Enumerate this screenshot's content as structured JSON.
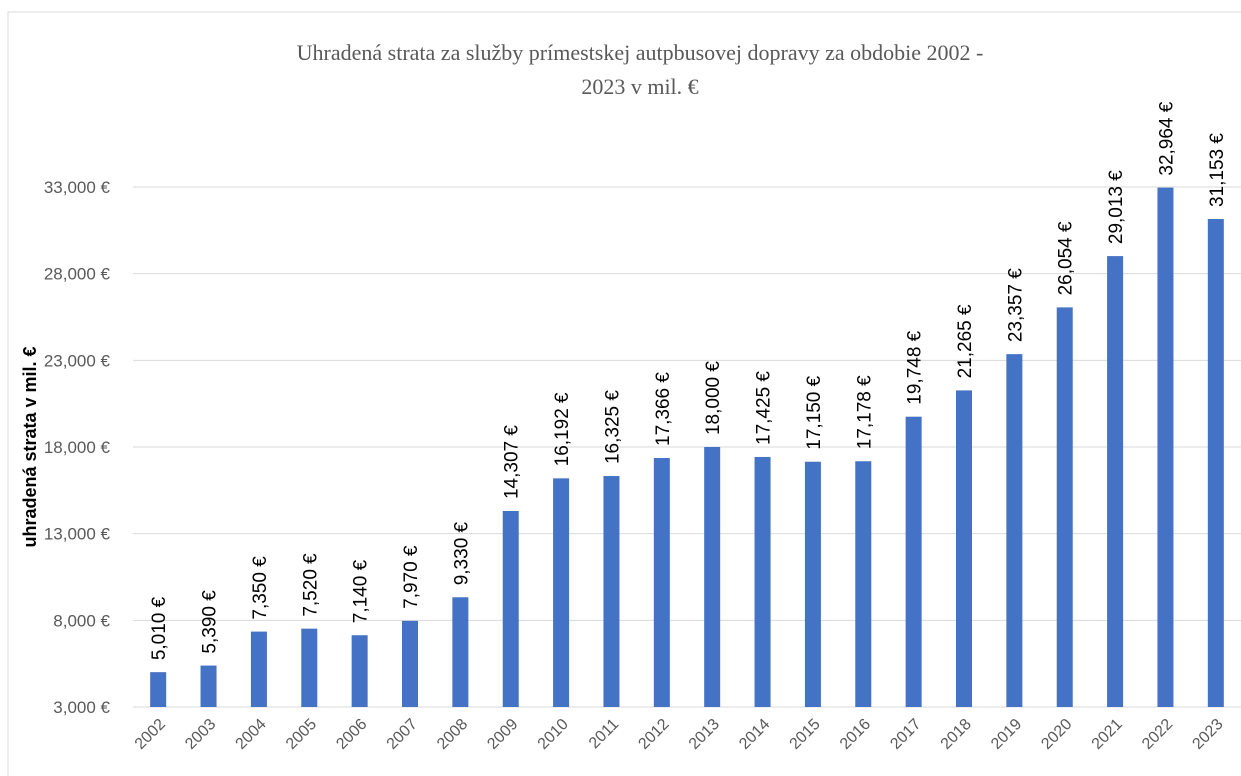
{
  "chart_data": {
    "type": "bar",
    "title": [
      "Uhradená strata za služby prímestskej autpbusovej dopravy za obdobie 2002 -",
      "2023 v mil. €"
    ],
    "y_label": "uhradená strata v mil. €",
    "categories": [
      "2002",
      "2003",
      "2004",
      "2005",
      "2006",
      "2007",
      "2008",
      "2009",
      "2010",
      "2011",
      "2012",
      "2013",
      "2014",
      "2015",
      "2016",
      "2017",
      "2018",
      "2019",
      "2020",
      "2021",
      "2022",
      "2023"
    ],
    "values": [
      5010,
      5390,
      7350,
      7520,
      7140,
      7970,
      9330,
      14307,
      16192,
      16325,
      17366,
      18000,
      17425,
      17150,
      17178,
      19748,
      21265,
      23357,
      26054,
      29013,
      32964,
      31153
    ],
    "value_labels": [
      "5,010 €",
      "5,390 €",
      "7,350 €",
      "7,520 €",
      "7,140 €",
      "7,970 €",
      "9,330 €",
      "14,307 €",
      "16,192 €",
      "16,325 €",
      "17,366 €",
      "18,000 €",
      "17,425 €",
      "17,150 €",
      "17,178 €",
      "19,748 €",
      "21,265 €",
      "23,357 €",
      "26,054 €",
      "29,013 €",
      "32,964 €",
      "31,153 €"
    ],
    "color": "#4472c4",
    "ylim": [
      3000,
      33000
    ],
    "yticks": [
      {
        "value": 3000,
        "label": "3,000 €"
      },
      {
        "value": 8000,
        "label": "8,000 €"
      },
      {
        "value": 13000,
        "label": "13,000 €"
      },
      {
        "value": 18000,
        "label": "18,000 €"
      },
      {
        "value": 23000,
        "label": "23,000 €"
      },
      {
        "value": 28000,
        "label": "28,000 €"
      },
      {
        "value": 33000,
        "label": "33,000 €"
      }
    ],
    "grid": true
  }
}
